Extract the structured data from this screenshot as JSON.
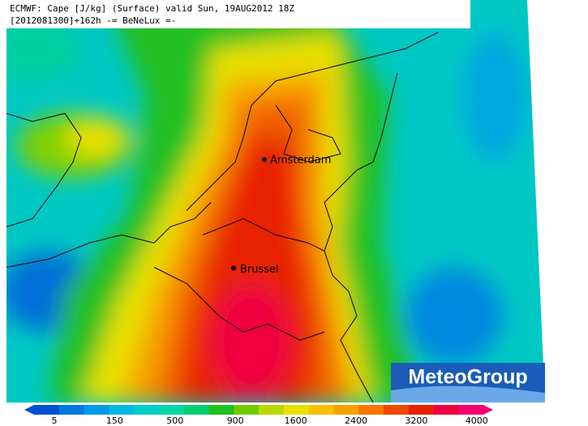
{
  "header": {
    "line1": "ECMWF: Cape [J/kg] (Surface) valid Sun, 19AUG2012 18Z",
    "line2": "[2012081300]+162h -= BeNeLux =-"
  },
  "cities": [
    {
      "label": "Amsterdam"
    },
    {
      "label": "Brussel"
    }
  ],
  "legend": {
    "labels": [
      "5",
      "150",
      "500",
      "900",
      "1600",
      "2400",
      "3200",
      "4000"
    ]
  },
  "logo": "MeteoGroup"
}
